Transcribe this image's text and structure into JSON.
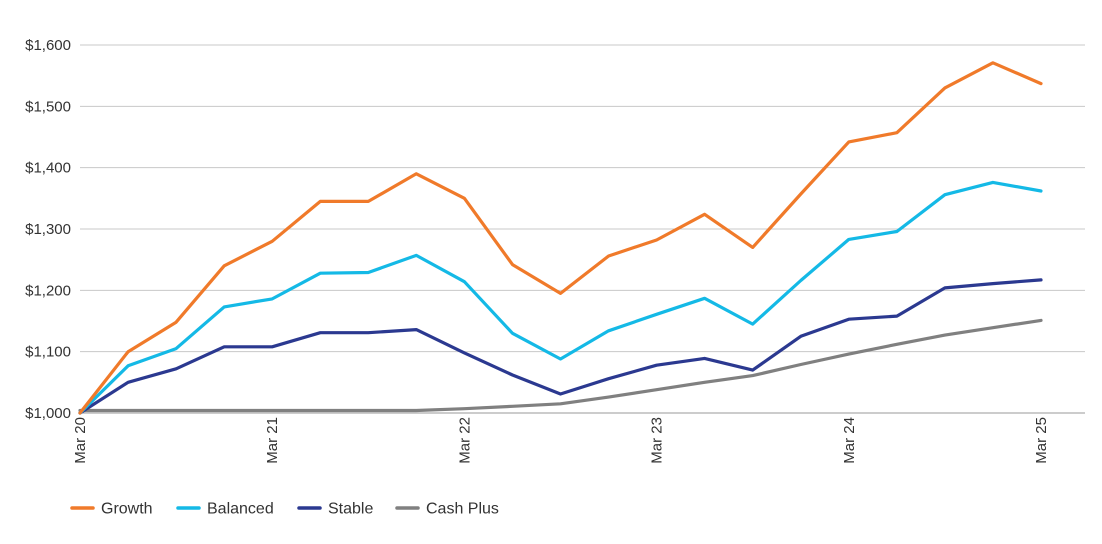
{
  "chart_data": {
    "type": "line",
    "title": "",
    "xlabel": "",
    "ylabel": "",
    "ylim": [
      1000,
      1600
    ],
    "yticks": [
      1000,
      1100,
      1200,
      1300,
      1400,
      1500,
      1600
    ],
    "ytick_labels": [
      "$1,000",
      "$1,100",
      "$1,200",
      "$1,300",
      "$1,400",
      "$1,500",
      "$1,600"
    ],
    "xtick_labels": [
      "Mar 20",
      "Mar 21",
      "Mar 22",
      "Mar 23",
      "Mar 24",
      "Mar 25"
    ],
    "xlim": [
      0,
      20
    ],
    "xticks": [
      0,
      4,
      8,
      12,
      16,
      20
    ],
    "grid": "horizontal",
    "legend_position": "bottom-left",
    "series": [
      {
        "name": "Growth",
        "color": "#F07A2A",
        "x": [
          0,
          1,
          2,
          3,
          4,
          5,
          6,
          7,
          8,
          9,
          10,
          11,
          12,
          13,
          14,
          15,
          16,
          17,
          18,
          19,
          20
        ],
        "values": [
          1000,
          1100,
          1148,
          1240,
          1280,
          1345,
          1345,
          1390,
          1350,
          1242,
          1195,
          1256,
          1282,
          1324,
          1270,
          1357,
          1442,
          1457,
          1530,
          1571,
          1537
        ]
      },
      {
        "name": "Balanced",
        "color": "#14B9E6",
        "x": [
          0,
          1,
          2,
          3,
          4,
          5,
          6,
          7,
          8,
          9,
          10,
          11,
          12,
          13,
          14,
          15,
          16,
          17,
          18,
          19,
          20
        ],
        "values": [
          1000,
          1077,
          1105,
          1173,
          1186,
          1228,
          1229,
          1257,
          1214,
          1130,
          1088,
          1134,
          1161,
          1187,
          1145,
          1216,
          1283,
          1296,
          1356,
          1376,
          1362
        ]
      },
      {
        "name": "Stable",
        "color": "#2B3990",
        "x": [
          0,
          1,
          2,
          3,
          4,
          5,
          6,
          7,
          8,
          9,
          10,
          11,
          12,
          13,
          14,
          15,
          16,
          17,
          18,
          19,
          20
        ],
        "values": [
          1000,
          1050,
          1072,
          1108,
          1108,
          1131,
          1131,
          1136,
          1098,
          1062,
          1031,
          1056,
          1078,
          1089,
          1070,
          1125,
          1153,
          1158,
          1204,
          1211,
          1217
        ]
      },
      {
        "name": "Cash Plus",
        "color": "#808080",
        "x": [
          0,
          1,
          2,
          3,
          4,
          5,
          6,
          7,
          8,
          9,
          10,
          11,
          12,
          13,
          14,
          15,
          16,
          17,
          18,
          19,
          20
        ],
        "values": [
          1004,
          1004,
          1004,
          1004,
          1004,
          1004,
          1004,
          1004,
          1007,
          1011,
          1015,
          1026,
          1038,
          1050,
          1061,
          1079,
          1096,
          1112,
          1127,
          1139,
          1151
        ]
      }
    ]
  }
}
